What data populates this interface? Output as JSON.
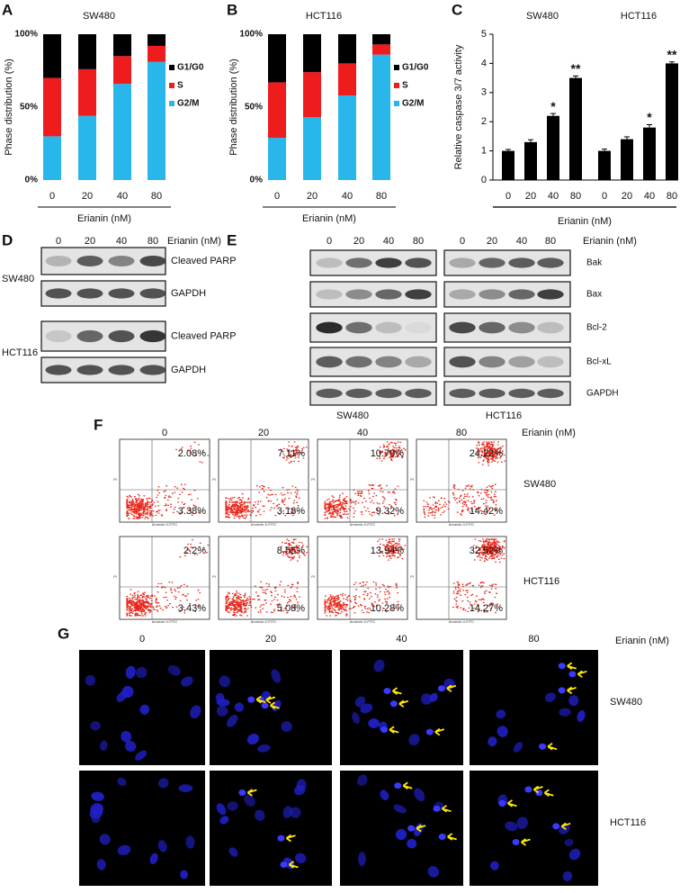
{
  "chart_data": [
    {
      "type": "stacked_bar",
      "panel_letter": "A",
      "title": "SW480",
      "ylabel": "Phase distribution (%)",
      "xlabel": "Erianin (nM)",
      "categories": [
        "0",
        "20",
        "40",
        "80"
      ],
      "series": [
        {
          "name": "G1/G0",
          "color": "#000000",
          "values": [
            30,
            24,
            15,
            8
          ]
        },
        {
          "name": "S",
          "color": "#ee1c1c",
          "values": [
            40,
            32,
            19,
            11
          ]
        },
        {
          "name": "G2/M",
          "color": "#29b6ea",
          "values": [
            30,
            44,
            66,
            81
          ]
        }
      ],
      "ylim": [
        0,
        100
      ],
      "yticks": [
        {
          "value": 0,
          "label": "0%"
        },
        {
          "value": 50,
          "label": "50%"
        },
        {
          "value": 100,
          "label": "100%"
        }
      ]
    },
    {
      "type": "stacked_bar",
      "panel_letter": "B",
      "title": "HCT116",
      "ylabel": "Phase distribution (%)",
      "xlabel": "Erianin (nM)",
      "categories": [
        "0",
        "20",
        "40",
        "80"
      ],
      "series": [
        {
          "name": "G1/G0",
          "color": "#000000",
          "values": [
            33,
            26,
            20,
            7
          ]
        },
        {
          "name": "S",
          "color": "#ee1c1c",
          "values": [
            38,
            31,
            22,
            7
          ]
        },
        {
          "name": "G2/M",
          "color": "#29b6ea",
          "values": [
            29,
            43,
            58,
            86
          ]
        }
      ],
      "ylim": [
        0,
        100
      ],
      "yticks": [
        {
          "value": 0,
          "label": "0%"
        },
        {
          "value": 50,
          "label": "50%"
        },
        {
          "value": 100,
          "label": "100%"
        }
      ]
    },
    {
      "type": "grouped_bar",
      "panel_letter": "C",
      "ylabel": "Relative caspase 3/7 activity",
      "xlabel": "Erianin (nM)",
      "categories": [
        "0",
        "20",
        "40",
        "80"
      ],
      "series": [
        {
          "name": "SW480",
          "color": "#000000",
          "values": [
            1.0,
            1.3,
            2.2,
            3.5
          ],
          "errors": [
            0.05,
            0.08,
            0.08,
            0.07
          ],
          "significance": [
            null,
            null,
            "*",
            "**"
          ]
        },
        {
          "name": "HCT116",
          "color": "#000000",
          "values": [
            1.0,
            1.4,
            1.8,
            4.0
          ],
          "errors": [
            0.06,
            0.08,
            0.1,
            0.05
          ],
          "significance": [
            null,
            null,
            "*",
            "**"
          ]
        }
      ],
      "ylim": [
        0,
        5
      ],
      "yticks": [
        0,
        1,
        2,
        3,
        4,
        5
      ]
    }
  ],
  "western_blots": [
    {
      "panel_letter": "D",
      "treatment_label": "Erianin (nM)",
      "lanes": [
        "0",
        "20",
        "40",
        "80"
      ],
      "groups": [
        {
          "cell": "SW480",
          "proteins": [
            "Cleaved PARP",
            "GAPDH"
          ]
        },
        {
          "cell": "HCT116",
          "proteins": [
            "Cleaved PARP",
            "GAPDH"
          ]
        }
      ]
    },
    {
      "panel_letter": "E",
      "treatment_label": "Erianin (nM)",
      "lanes": [
        "0",
        "20",
        "40",
        "80"
      ],
      "cells": [
        "SW480",
        "HCT116"
      ],
      "proteins": [
        "Bak",
        "Bax",
        "Bcl-2",
        "Bcl-xL",
        "GAPDH"
      ]
    }
  ],
  "flow_cytometry": {
    "panel_letter": "F",
    "treatment_label": "Erianin (nM)",
    "concentrations": [
      "0",
      "20",
      "40",
      "80"
    ],
    "x_axis_label": "Annexin-V-FITC",
    "y_axis_label": "PI",
    "rows": [
      {
        "cell": "SW480",
        "upper_right": [
          "2.08%",
          "7.11%",
          "10.70%",
          "24.22%"
        ],
        "lower_right": [
          "3.38%",
          "3.18%",
          "9.32%",
          "14.42%"
        ]
      },
      {
        "cell": "HCT116",
        "upper_right": [
          "2.2%",
          "8.55%",
          "13.94%",
          "32.52%"
        ],
        "lower_right": [
          "3.43%",
          "5.08%",
          "10.28%",
          "14.27%"
        ]
      }
    ]
  },
  "microscopy": {
    "panel_letter": "G",
    "treatment_label": "Erianin (nM)",
    "concentrations": [
      "0",
      "20",
      "40",
      "80"
    ],
    "rows": [
      {
        "cell": "SW480"
      },
      {
        "cell": "HCT116"
      }
    ]
  }
}
